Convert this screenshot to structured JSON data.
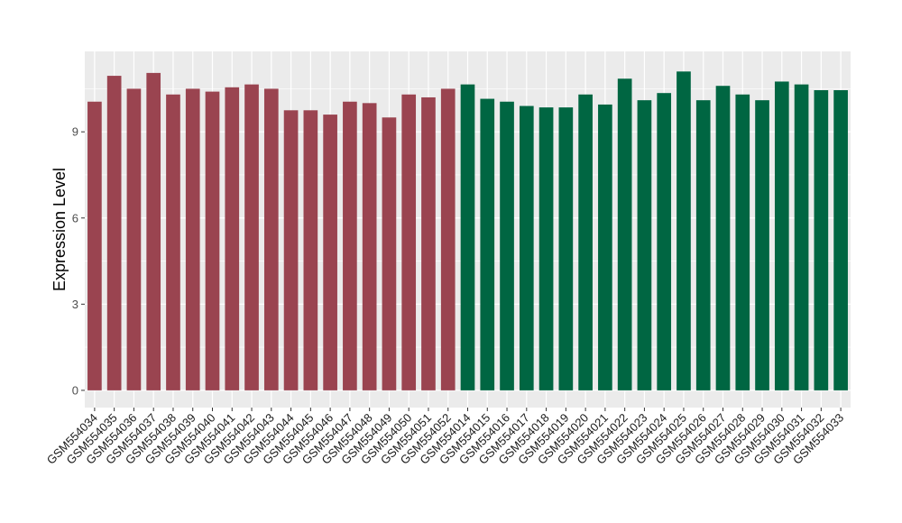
{
  "chart_data": {
    "type": "bar",
    "title": "",
    "xlabel": "",
    "ylabel": "Expression Level",
    "ylim": [
      -0.6,
      11.8
    ],
    "yticks": [
      0,
      3,
      6,
      9
    ],
    "grid": true,
    "legend": "none",
    "categories": [
      "GSM554034",
      "GSM554035",
      "GSM554036",
      "GSM554037",
      "GSM554038",
      "GSM554039",
      "GSM554040",
      "GSM554041",
      "GSM554042",
      "GSM554043",
      "GSM554044",
      "GSM554045",
      "GSM554046",
      "GSM554047",
      "GSM554048",
      "GSM554049",
      "GSM554050",
      "GSM554051",
      "GSM554052",
      "GSM554014",
      "GSM554015",
      "GSM554016",
      "GSM554017",
      "GSM554018",
      "GSM554019",
      "GSM554020",
      "GSM554021",
      "GSM554022",
      "GSM554023",
      "GSM554024",
      "GSM554025",
      "GSM554026",
      "GSM554027",
      "GSM554028",
      "GSM554029",
      "GSM554030",
      "GSM554031",
      "GSM554032",
      "GSM554033"
    ],
    "values": [
      10.05,
      10.95,
      10.5,
      11.05,
      10.3,
      10.5,
      10.4,
      10.55,
      10.65,
      10.5,
      9.75,
      9.75,
      9.6,
      10.05,
      10.0,
      9.5,
      10.3,
      10.2,
      10.5,
      10.65,
      10.15,
      10.05,
      9.9,
      9.85,
      9.85,
      10.3,
      9.95,
      10.85,
      10.1,
      10.35,
      11.1,
      10.1,
      10.6,
      10.3,
      10.1,
      10.75,
      10.65,
      10.45,
      10.45
    ],
    "colors": [
      "#9a4450",
      "#9a4450",
      "#9a4450",
      "#9a4450",
      "#9a4450",
      "#9a4450",
      "#9a4450",
      "#9a4450",
      "#9a4450",
      "#9a4450",
      "#9a4450",
      "#9a4450",
      "#9a4450",
      "#9a4450",
      "#9a4450",
      "#9a4450",
      "#9a4450",
      "#9a4450",
      "#9a4450",
      "#006642",
      "#006642",
      "#006642",
      "#006642",
      "#006642",
      "#006642",
      "#006642",
      "#006642",
      "#006642",
      "#006642",
      "#006642",
      "#006642",
      "#006642",
      "#006642",
      "#006642",
      "#006642",
      "#006642",
      "#006642",
      "#006642",
      "#006642"
    ],
    "panel_background": "#ebebeb",
    "grid_color": "#ffffff"
  }
}
